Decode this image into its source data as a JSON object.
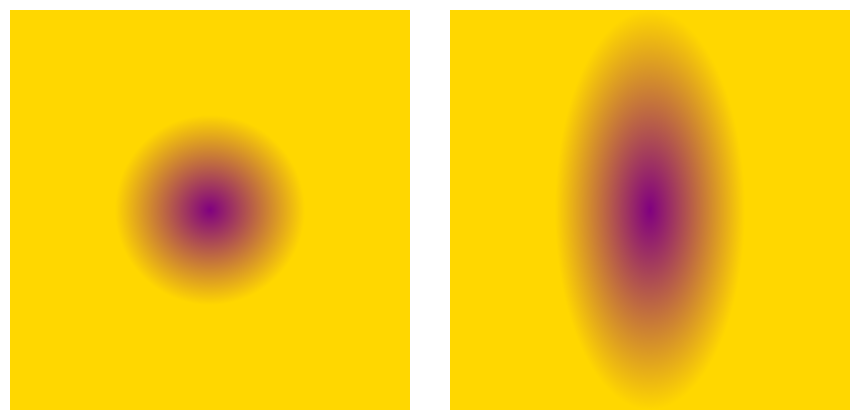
{
  "panels": [
    {
      "id": "circular-gradient",
      "shape": "circle",
      "inner_color": "#800080",
      "outer_color": "#FFD700"
    },
    {
      "id": "elliptical-gradient",
      "shape": "ellipse",
      "inner_color": "#800080",
      "outer_color": "#FFD700"
    }
  ]
}
